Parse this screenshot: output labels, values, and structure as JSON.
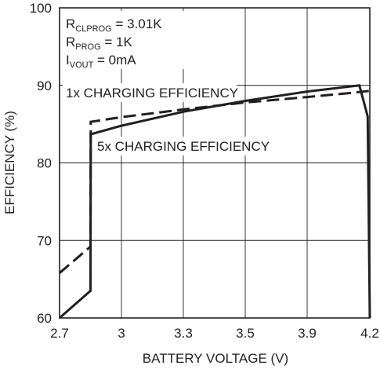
{
  "chart_data": {
    "type": "line",
    "xlabel": "BATTERY VOLTAGE (V)",
    "ylabel": "EFFICIENCY (%)",
    "x_tick_labels": [
      "2.7",
      "3",
      "3.3",
      "3.5",
      "3.9",
      "4.2"
    ],
    "y_ticks": [
      60,
      70,
      80,
      90,
      100
    ],
    "ylim": [
      60,
      100
    ],
    "xlim": [
      2.7,
      4.2
    ],
    "grid": true,
    "conditions": [
      {
        "main": "R",
        "sub": "CLPROG",
        "rest": " = 3.01K"
      },
      {
        "main": "R",
        "sub": "PROG",
        "rest": " = 1K"
      },
      {
        "main": "I",
        "sub": "VOUT",
        "rest": " = 0mA"
      }
    ],
    "series": [
      {
        "name": "1x CHARGING EFFICIENCY",
        "style": "dashed",
        "x": [
          2.7,
          2.85,
          2.851,
          3.0,
          3.3,
          3.6,
          3.9,
          4.1,
          4.2
        ],
        "y": [
          65.8,
          69.2,
          85.3,
          85.9,
          86.9,
          87.8,
          88.5,
          89.0,
          89.3
        ]
      },
      {
        "name": "5x CHARGING EFFICIENCY",
        "style": "solid",
        "x": [
          2.7,
          2.85,
          2.851,
          3.0,
          3.3,
          3.6,
          3.9,
          4.15,
          4.19,
          4.2
        ],
        "y": [
          60.0,
          63.5,
          83.7,
          84.8,
          86.6,
          88.0,
          89.2,
          90.0,
          86.0,
          60.0
        ]
      }
    ],
    "annotations": [
      "1x CHARGING EFFICIENCY",
      "5x CHARGING EFFICIENCY"
    ],
    "colors": {
      "line": "#231f20",
      "grid": "#231f20"
    }
  }
}
